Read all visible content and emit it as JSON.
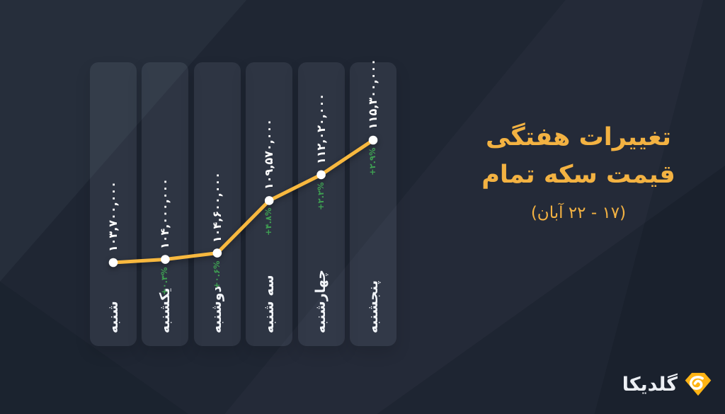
{
  "title": {
    "line1": "تغییرات هفتگی",
    "line2": "قیمت سکه تمام",
    "subtitle": "(۱۷ - ۲۲ آبان)",
    "accent_color": "#f3b242"
  },
  "logo": {
    "text": "گلدیکا",
    "icon": "goldika-gem-icon",
    "icon_color": "#ffb414",
    "text_color": "#eceff4"
  },
  "chart_data": {
    "type": "line",
    "title": "تغییرات هفتگی قیمت سکه تمام (۱۷ - ۲۲ آبان)",
    "categories": [
      "شنبه",
      "یکشنبه",
      "دوشنبه",
      "سه شنبه",
      "چهارشنبه",
      "پنجشنبه"
    ],
    "values": [
      103700000,
      104000000,
      104600000,
      109570000,
      112020000,
      115300000
    ],
    "value_labels": [
      "۱۰۳,۷۰۰,۰۰۰",
      "۱۰۴,۰۰۰,۰۰۰",
      "۱۰۴,۶۰۰,۰۰۰",
      "۱۰۹,۵۷۰,۰۰۰",
      "۱۱۲,۰۲۰,۰۰۰",
      "۱۱۵,۳۰۰,۰۰۰"
    ],
    "change_labels": [
      "",
      "+۰.۳%",
      "+۰.۶%",
      "+۴.۸%",
      "+۲.۲%",
      "+۲.۹%"
    ],
    "changes_pct": [
      null,
      0.3,
      0.6,
      4.8,
      2.2,
      2.9
    ],
    "ylim": [
      103700000,
      115300000
    ],
    "xlabel": "",
    "ylabel": "",
    "layout_hints": {
      "grid": false,
      "legend": false,
      "orientation": "vertical day columns, labels rotated 90° counter-clockwise",
      "line_color": "#f7b83f",
      "point_color": "#ffffff",
      "change_color": "#3fa052",
      "value_label_color": "#ffffff",
      "day_label_color": "#f2f5f9",
      "column_color": "rgba(205,220,245,0.085)",
      "background_color": "#1f2633"
    }
  }
}
